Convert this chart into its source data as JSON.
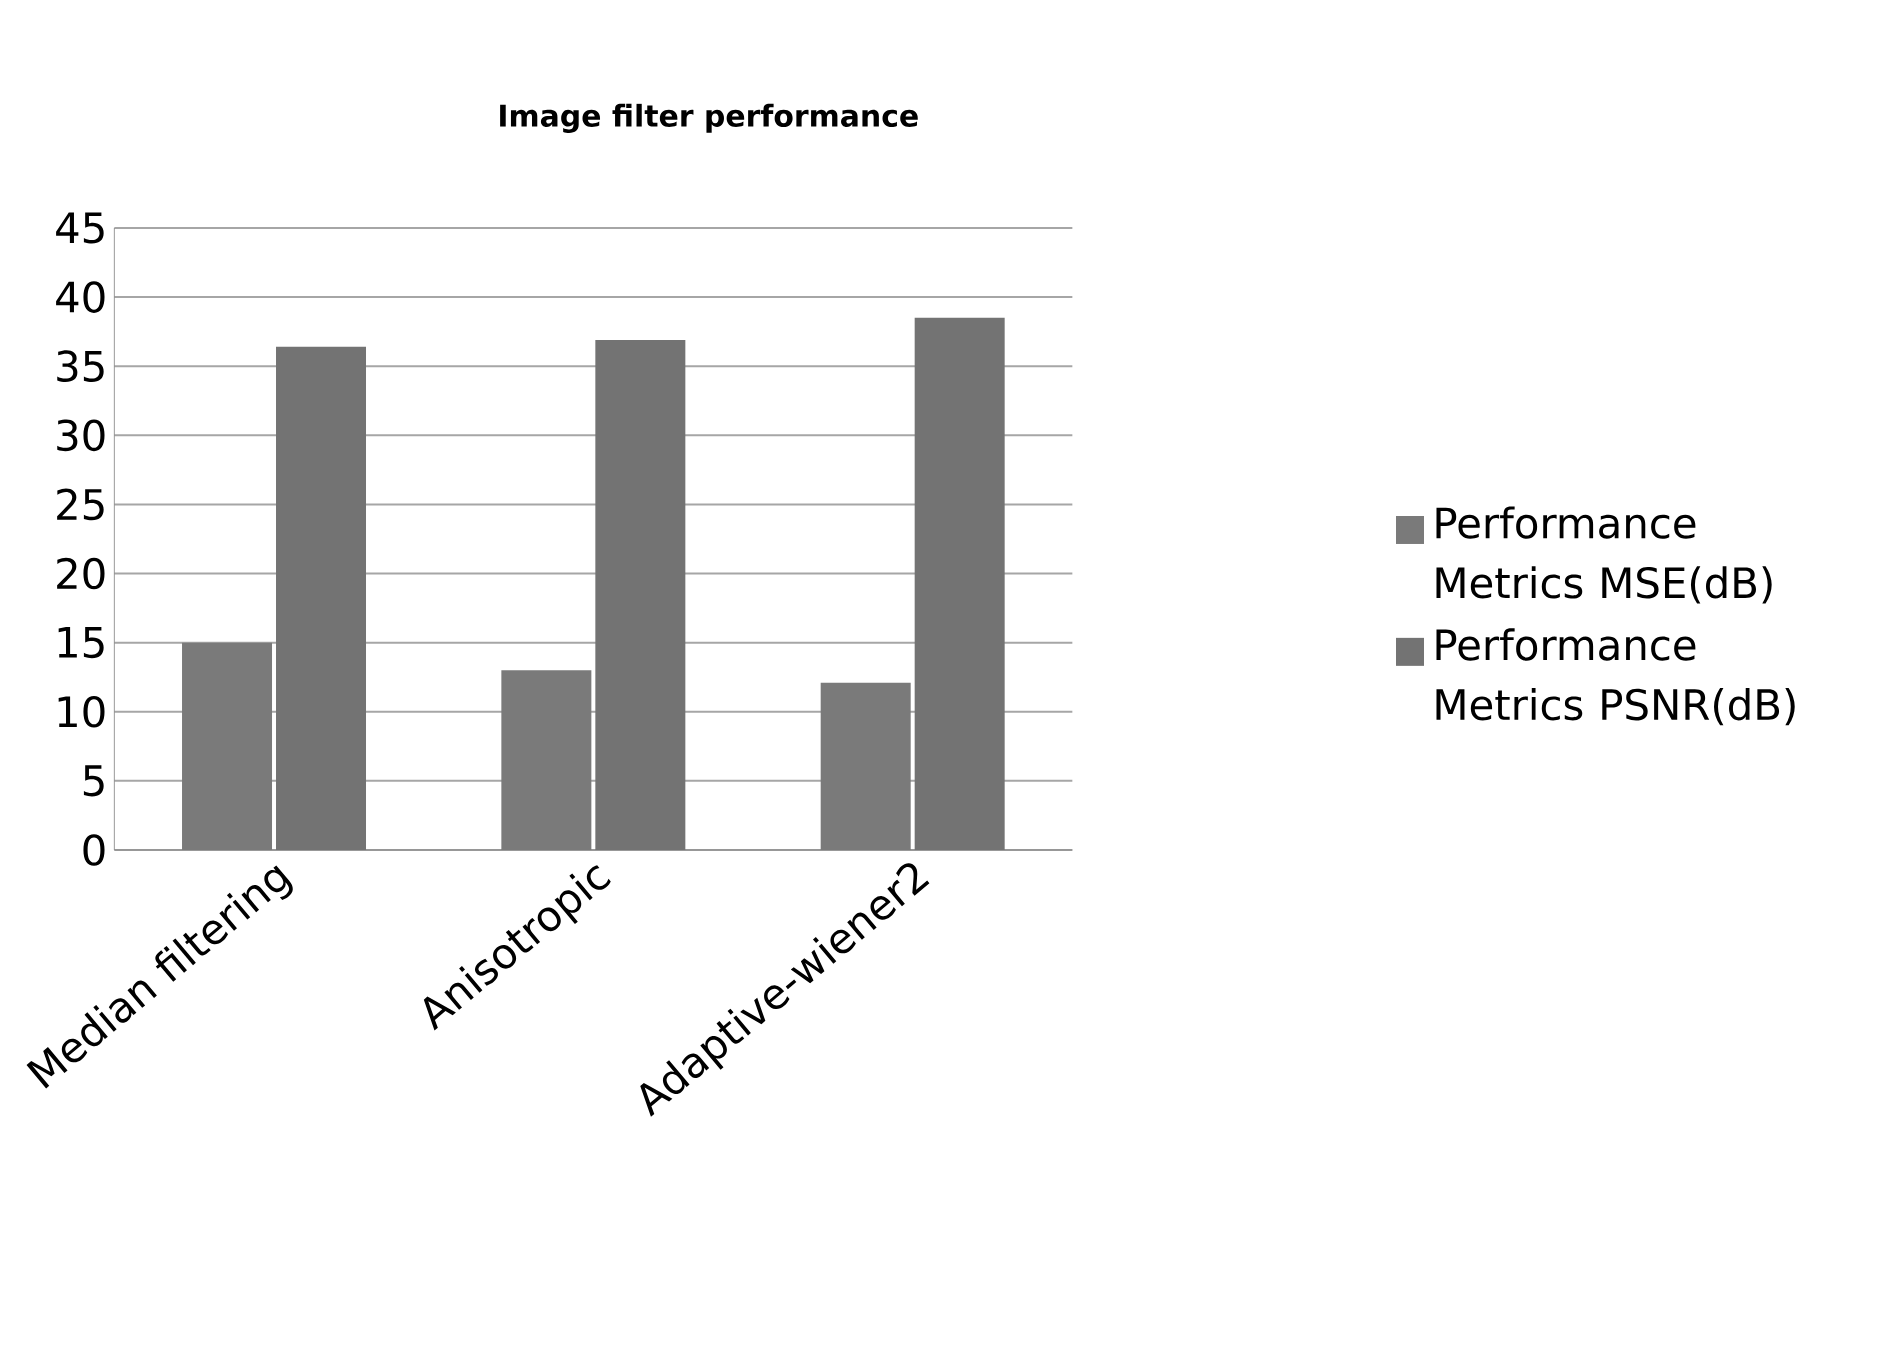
{
  "chart_data": {
    "type": "bar",
    "title": "Image filter performance",
    "categories": [
      "Median filtering",
      "Anisotropic",
      "Adaptive-wiener2"
    ],
    "series": [
      {
        "name": "Performance Metrics MSE(dB)",
        "color": "#7a7a7a",
        "values": [
          15.0,
          13.0,
          12.1
        ]
      },
      {
        "name": "Performance Metrics PSNR(dB)",
        "color": "#737373",
        "values": [
          36.4,
          36.9,
          38.5
        ]
      }
    ],
    "ylim": [
      0,
      45
    ],
    "yticks": [
      0,
      5,
      10,
      15,
      20,
      25,
      30,
      35,
      40,
      45
    ],
    "grid": "y",
    "legend": "right"
  }
}
